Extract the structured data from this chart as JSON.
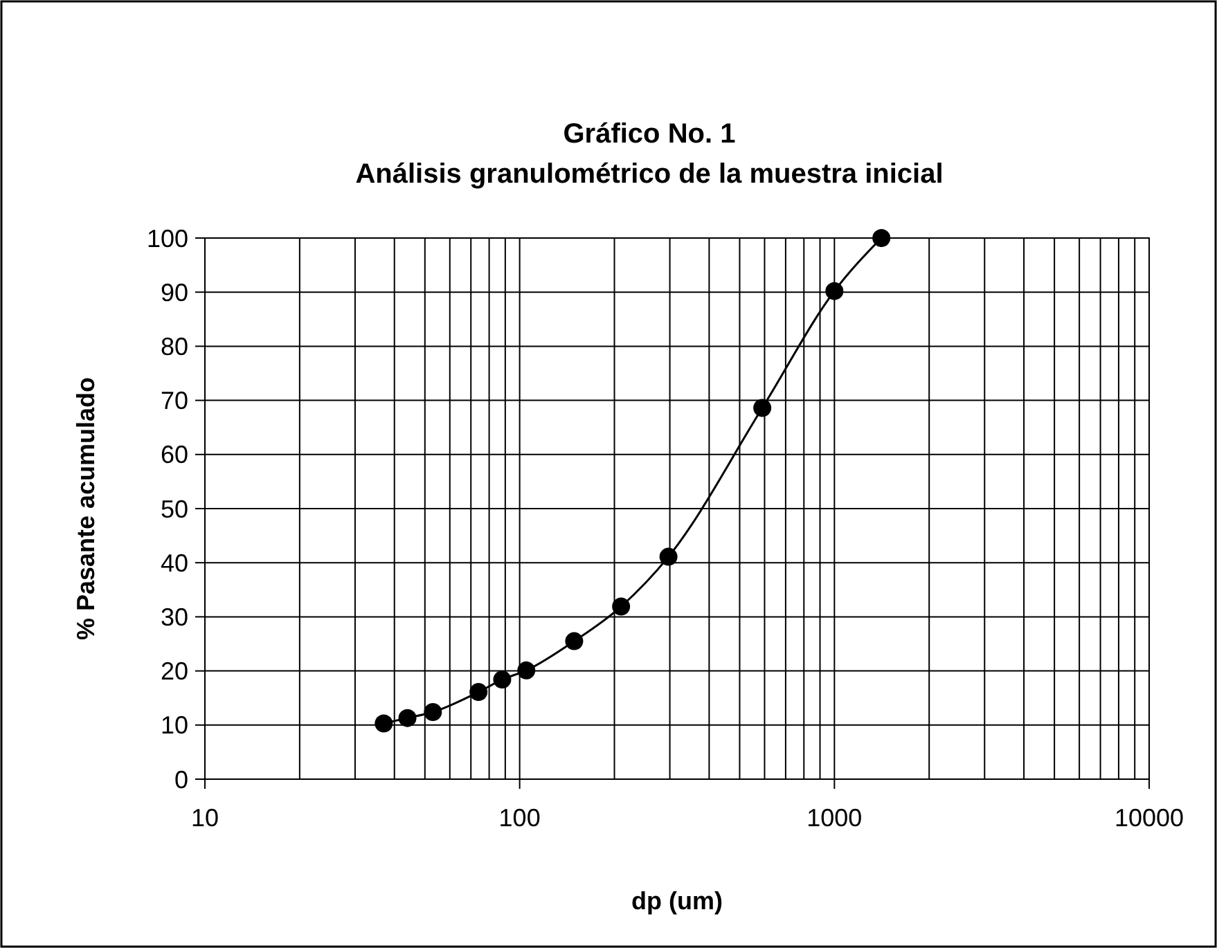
{
  "chart_data": {
    "type": "line",
    "title": "Gráfico No. 1",
    "subtitle": "Análisis granulométrico de la muestra inicial",
    "xlabel": "dp (um)",
    "ylabel": "% Pasante acumulado",
    "x": [
      37,
      44,
      53,
      74,
      88,
      105,
      149,
      210,
      297,
      590,
      1000,
      1410
    ],
    "series": [
      {
        "color": "#000000",
        "values": [
          10.3,
          11.3,
          12.4,
          16.1,
          18.4,
          20.1,
          25.5,
          31.9,
          41.1,
          68.6,
          90.2,
          100
        ]
      }
    ],
    "xlim": [
      10,
      10000
    ],
    "xticks": [
      10,
      100,
      1000,
      10000
    ],
    "ylim": [
      0,
      100
    ],
    "yticks": [
      0,
      10,
      20,
      30,
      40,
      50,
      60,
      70,
      80,
      90,
      100
    ],
    "log": "x",
    "grid": true,
    "marker": "circle",
    "line_style": "solid"
  }
}
